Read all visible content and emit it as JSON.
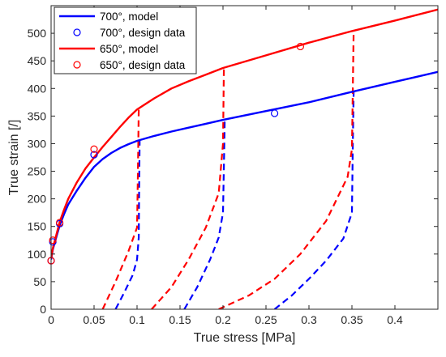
{
  "chart_data": {
    "type": "line",
    "title": "",
    "xlabel": "True stress [MPa]",
    "ylabel": "True strain [/]",
    "xlim": [
      0,
      0.45
    ],
    "ylim": [
      0,
      550
    ],
    "xticks": [
      0,
      0.05,
      0.1,
      0.15,
      0.2,
      0.25,
      0.3,
      0.35,
      0.4
    ],
    "xtick_labels": [
      "0",
      "0.05",
      "0.1",
      "0.15",
      "0.2",
      "0.25",
      "0.3",
      "0.35",
      "0.4"
    ],
    "yticks": [
      0,
      50,
      100,
      150,
      200,
      250,
      300,
      350,
      400,
      450,
      500
    ],
    "ytick_labels": [
      "0",
      "50",
      "100",
      "150",
      "200",
      "250",
      "300",
      "350",
      "400",
      "450",
      "500"
    ],
    "grid": false,
    "legend_position": "top-left",
    "colors": {
      "s700": "#0000ff",
      "s650": "#ff0000",
      "axis": "#262626"
    },
    "series": [
      {
        "name": "700°, model",
        "style": "solid-line",
        "color": "#0000ff",
        "points": [
          [
            0,
            90
          ],
          [
            0.002,
            108
          ],
          [
            0.005,
            125
          ],
          [
            0.01,
            152
          ],
          [
            0.015,
            172
          ],
          [
            0.02,
            190
          ],
          [
            0.03,
            215
          ],
          [
            0.04,
            238
          ],
          [
            0.05,
            258
          ],
          [
            0.06,
            272
          ],
          [
            0.07,
            283
          ],
          [
            0.08,
            292
          ],
          [
            0.09,
            299
          ],
          [
            0.1,
            305
          ],
          [
            0.12,
            314
          ],
          [
            0.14,
            322
          ],
          [
            0.16,
            329
          ],
          [
            0.18,
            336
          ],
          [
            0.2,
            343
          ],
          [
            0.25,
            359
          ],
          [
            0.3,
            375
          ],
          [
            0.35,
            394
          ],
          [
            0.4,
            412
          ],
          [
            0.45,
            430
          ]
        ]
      },
      {
        "name": "700°, design data",
        "style": "open-circle",
        "color": "#0000ff",
        "points": [
          [
            0,
            88
          ],
          [
            0.002,
            122
          ],
          [
            0.01,
            155
          ],
          [
            0.05,
            280
          ],
          [
            0.26,
            355
          ]
        ]
      },
      {
        "name": "650°, model",
        "style": "solid-line",
        "color": "#ff0000",
        "points": [
          [
            0,
            92
          ],
          [
            0.002,
            110
          ],
          [
            0.005,
            128
          ],
          [
            0.01,
            158
          ],
          [
            0.015,
            180
          ],
          [
            0.02,
            200
          ],
          [
            0.03,
            230
          ],
          [
            0.04,
            255
          ],
          [
            0.05,
            275
          ],
          [
            0.06,
            294
          ],
          [
            0.07,
            312
          ],
          [
            0.08,
            330
          ],
          [
            0.09,
            347
          ],
          [
            0.1,
            362
          ],
          [
            0.12,
            382
          ],
          [
            0.14,
            400
          ],
          [
            0.16,
            413
          ],
          [
            0.18,
            425
          ],
          [
            0.2,
            437
          ],
          [
            0.25,
            460
          ],
          [
            0.3,
            483
          ],
          [
            0.35,
            504
          ],
          [
            0.4,
            523
          ],
          [
            0.45,
            543
          ]
        ]
      },
      {
        "name": "650°, design data",
        "style": "open-circle",
        "color": "#ff0000",
        "points": [
          [
            0,
            88
          ],
          [
            0.002,
            125
          ],
          [
            0.01,
            157
          ],
          [
            0.05,
            290
          ],
          [
            0.29,
            476
          ]
        ]
      }
    ],
    "unloading_curves": [
      {
        "color": "#0000ff",
        "style": "dashed",
        "points": [
          [
            0.075,
            0
          ],
          [
            0.085,
            30
          ],
          [
            0.095,
            62
          ],
          [
            0.1,
            90
          ],
          [
            0.102,
            130
          ],
          [
            0.1025,
            220
          ],
          [
            0.103,
            305
          ]
        ]
      },
      {
        "color": "#0000ff",
        "style": "dashed",
        "points": [
          [
            0.155,
            0
          ],
          [
            0.17,
            40
          ],
          [
            0.185,
            90
          ],
          [
            0.195,
            130
          ],
          [
            0.2,
            175
          ],
          [
            0.201,
            260
          ],
          [
            0.202,
            343
          ]
        ]
      },
      {
        "color": "#0000ff",
        "style": "dashed",
        "points": [
          [
            0.26,
            0
          ],
          [
            0.28,
            25
          ],
          [
            0.3,
            55
          ],
          [
            0.32,
            88
          ],
          [
            0.34,
            128
          ],
          [
            0.35,
            175
          ],
          [
            0.351,
            300
          ],
          [
            0.352,
            394
          ]
        ]
      },
      {
        "color": "#ff0000",
        "style": "dashed",
        "points": [
          [
            0.06,
            0
          ],
          [
            0.075,
            50
          ],
          [
            0.09,
            105
          ],
          [
            0.1,
            148
          ],
          [
            0.101,
            250
          ],
          [
            0.102,
            362
          ]
        ]
      },
      {
        "color": "#ff0000",
        "style": "dashed",
        "points": [
          [
            0.117,
            0
          ],
          [
            0.14,
            40
          ],
          [
            0.16,
            90
          ],
          [
            0.18,
            148
          ],
          [
            0.195,
            210
          ],
          [
            0.2,
            300
          ],
          [
            0.201,
            437
          ]
        ]
      },
      {
        "color": "#ff0000",
        "style": "dashed",
        "points": [
          [
            0.195,
            0
          ],
          [
            0.23,
            25
          ],
          [
            0.26,
            55
          ],
          [
            0.29,
            100
          ],
          [
            0.32,
            160
          ],
          [
            0.345,
            240
          ],
          [
            0.35,
            290
          ],
          [
            0.351,
            400
          ],
          [
            0.352,
            504
          ]
        ]
      }
    ]
  }
}
